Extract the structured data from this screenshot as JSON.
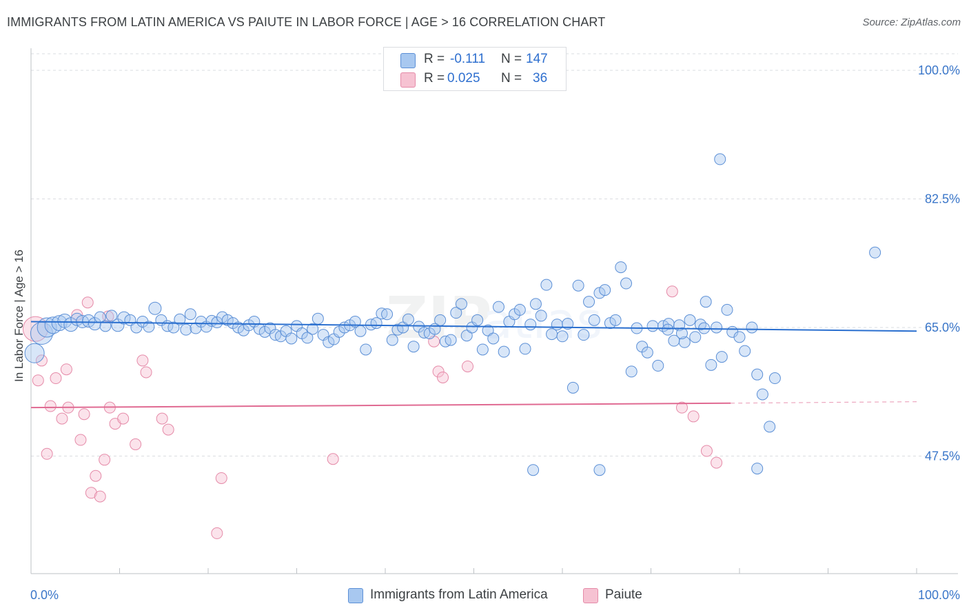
{
  "title": "IMMIGRANTS FROM LATIN AMERICA VS PAIUTE IN LABOR FORCE | AGE > 16 CORRELATION CHART",
  "source": "Source: ZipAtlas.com",
  "legend": {
    "rows": [
      {
        "r_label": "R =",
        "r_value": "-0.111",
        "n_label": "N =",
        "n_value": "147",
        "color": "#a8c8f0"
      },
      {
        "r_label": "R =",
        "r_value": "0.025",
        "n_label": "N =",
        "n_value": "36",
        "color": "#f6b6c8"
      }
    ]
  },
  "colors": {
    "blue_fill": "#a8c8f0",
    "blue_stroke": "#5b8fd6",
    "blue_line": "#2a6fcf",
    "pink_fill": "#f6c2d2",
    "pink_stroke": "#e58aa8",
    "pink_line": "#e06a92",
    "tick_text": "#3a76c9"
  },
  "chart_data": {
    "type": "scatter",
    "title": "IMMIGRANTS FROM LATIN AMERICA VS PAIUTE IN LABOR FORCE | AGE > 16 CORRELATION CHART",
    "xlabel": "",
    "ylabel": "In Labor Force | Age > 16",
    "xlim": [
      0,
      100
    ],
    "ylim": [
      31.5,
      103
    ],
    "x_tick_labels": [
      "0.0%",
      "100.0%"
    ],
    "y_ticks": [
      47.5,
      65.0,
      82.5,
      100.0
    ],
    "y_tick_labels": [
      "47.5%",
      "65.0%",
      "82.5%",
      "100.0%"
    ],
    "grid": "horizontal dashed",
    "legend_placement": "bottom",
    "series": [
      {
        "name": "Immigrants from Latin America",
        "color": "#a8c8f0",
        "trend": {
          "x": [
            0,
            100
          ],
          "y": [
            65.8,
            64.5
          ]
        },
        "points": [
          [
            0.4,
            61.5,
            14
          ],
          [
            1.2,
            64.2,
            16
          ],
          [
            1.8,
            65.0,
            14
          ],
          [
            2.5,
            65.3,
            12
          ],
          [
            3.2,
            65.6,
            11
          ],
          [
            3.8,
            65.9,
            10
          ],
          [
            4.5,
            65.4,
            10
          ],
          [
            5.2,
            66.1,
            9
          ],
          [
            5.8,
            65.8,
            9
          ],
          [
            6.5,
            65.9,
            9
          ],
          [
            7.2,
            65.5,
            9
          ],
          [
            7.8,
            66.4,
            8
          ],
          [
            8.4,
            65.2,
            8
          ],
          [
            9.1,
            66.6,
            8
          ],
          [
            9.8,
            65.3,
            9
          ],
          [
            10.5,
            66.3,
            9
          ],
          [
            11.2,
            66.0,
            8
          ],
          [
            11.9,
            65.0,
            8
          ],
          [
            12.6,
            65.8,
            8
          ],
          [
            13.3,
            65.1,
            8
          ],
          [
            14.0,
            67.6,
            9
          ],
          [
            14.7,
            66.0,
            8
          ],
          [
            15.4,
            65.2,
            8
          ],
          [
            16.1,
            65.0,
            8
          ],
          [
            16.8,
            66.1,
            8
          ],
          [
            17.5,
            64.7,
            8
          ],
          [
            18.0,
            66.8,
            8
          ],
          [
            18.6,
            64.9,
            8
          ],
          [
            19.2,
            65.8,
            8
          ],
          [
            19.8,
            65.1,
            8
          ],
          [
            20.4,
            65.9,
            8
          ],
          [
            21.0,
            65.7,
            8
          ],
          [
            21.6,
            66.4,
            8
          ],
          [
            22.2,
            66.0,
            8
          ],
          [
            22.8,
            65.6,
            8
          ],
          [
            23.4,
            65.0,
            8
          ],
          [
            24.0,
            64.6,
            8
          ],
          [
            24.6,
            65.3,
            8
          ],
          [
            25.2,
            65.8,
            8
          ],
          [
            25.8,
            64.8,
            8
          ],
          [
            26.4,
            64.4,
            8
          ],
          [
            27.0,
            64.9,
            8
          ],
          [
            27.6,
            64.0,
            8
          ],
          [
            28.2,
            63.8,
            8
          ],
          [
            28.8,
            64.5,
            8
          ],
          [
            29.4,
            63.5,
            8
          ],
          [
            30.0,
            65.2,
            8
          ],
          [
            30.6,
            64.2,
            8
          ],
          [
            31.2,
            63.6,
            8
          ],
          [
            31.8,
            64.8,
            8
          ],
          [
            32.4,
            66.2,
            8
          ],
          [
            33.0,
            64.0,
            8
          ],
          [
            33.6,
            63.0,
            8
          ],
          [
            34.2,
            63.4,
            8
          ],
          [
            34.8,
            64.4,
            8
          ],
          [
            35.4,
            65.0,
            8
          ],
          [
            36.0,
            65.3,
            8
          ],
          [
            36.6,
            65.8,
            8
          ],
          [
            37.2,
            64.5,
            8
          ],
          [
            37.8,
            62.0,
            8
          ],
          [
            38.4,
            65.4,
            8
          ],
          [
            39.0,
            65.6,
            8
          ],
          [
            39.6,
            66.9,
            8
          ],
          [
            40.2,
            66.8,
            8
          ],
          [
            40.8,
            63.3,
            8
          ],
          [
            41.4,
            64.7,
            8
          ],
          [
            42.0,
            65.0,
            8
          ],
          [
            42.6,
            66.1,
            8
          ],
          [
            43.2,
            62.4,
            8
          ],
          [
            43.8,
            65.1,
            8
          ],
          [
            44.4,
            64.3,
            8
          ],
          [
            45.0,
            64.2,
            8
          ],
          [
            45.6,
            64.8,
            8
          ],
          [
            46.2,
            66.0,
            8
          ],
          [
            46.8,
            63.1,
            8
          ],
          [
            47.4,
            63.3,
            8
          ],
          [
            48.0,
            67.0,
            8
          ],
          [
            48.6,
            68.2,
            8
          ],
          [
            49.2,
            63.9,
            8
          ],
          [
            49.8,
            65.0,
            8
          ],
          [
            50.4,
            66.0,
            8
          ],
          [
            51.0,
            62.0,
            8
          ],
          [
            51.6,
            64.6,
            8
          ],
          [
            52.2,
            63.5,
            8
          ],
          [
            52.8,
            67.8,
            8
          ],
          [
            53.4,
            61.7,
            8
          ],
          [
            54.0,
            65.8,
            8
          ],
          [
            54.6,
            66.8,
            8
          ],
          [
            55.2,
            67.4,
            8
          ],
          [
            55.8,
            62.1,
            8
          ],
          [
            56.4,
            65.4,
            8
          ],
          [
            57.0,
            68.2,
            8
          ],
          [
            57.6,
            66.6,
            8
          ],
          [
            58.2,
            70.8,
            8
          ],
          [
            58.8,
            64.1,
            8
          ],
          [
            59.4,
            65.4,
            8
          ],
          [
            60.0,
            63.8,
            8
          ],
          [
            60.6,
            65.5,
            8
          ],
          [
            61.2,
            56.8,
            8
          ],
          [
            61.8,
            70.7,
            8
          ],
          [
            62.4,
            64.0,
            8
          ],
          [
            63.0,
            68.5,
            8
          ],
          [
            63.6,
            66.0,
            8
          ],
          [
            64.2,
            69.7,
            8
          ],
          [
            64.8,
            70.1,
            8
          ],
          [
            65.4,
            65.6,
            8
          ],
          [
            66.0,
            66.0,
            8
          ],
          [
            66.6,
            73.2,
            8
          ],
          [
            67.2,
            71.0,
            8
          ],
          [
            67.8,
            59.0,
            8
          ],
          [
            68.4,
            64.9,
            8
          ],
          [
            69.0,
            62.4,
            8
          ],
          [
            69.6,
            61.6,
            8
          ],
          [
            70.2,
            65.2,
            8
          ],
          [
            70.8,
            59.8,
            8
          ],
          [
            71.4,
            65.2,
            8
          ],
          [
            72.0,
            65.5,
            8
          ],
          [
            72.6,
            63.2,
            8
          ],
          [
            73.2,
            65.3,
            8
          ],
          [
            73.8,
            63.0,
            8
          ],
          [
            74.4,
            66.0,
            8
          ],
          [
            75.0,
            63.7,
            8
          ],
          [
            75.6,
            65.4,
            8
          ],
          [
            76.2,
            68.5,
            8
          ],
          [
            76.8,
            59.9,
            8
          ],
          [
            77.4,
            65.0,
            8
          ],
          [
            78.0,
            61.0,
            8
          ],
          [
            78.6,
            67.4,
            8
          ],
          [
            79.2,
            64.4,
            8
          ],
          [
            80.0,
            63.7,
            8
          ],
          [
            80.6,
            61.8,
            8
          ],
          [
            81.4,
            65.0,
            8
          ],
          [
            82.0,
            58.6,
            8
          ],
          [
            82.6,
            55.9,
            8
          ],
          [
            83.4,
            51.5,
            8
          ],
          [
            84.0,
            58.1,
            8
          ],
          [
            82.0,
            45.8,
            8
          ],
          [
            56.7,
            45.6,
            8
          ],
          [
            64.2,
            45.6,
            8
          ],
          [
            77.8,
            87.9,
            8
          ],
          [
            95.3,
            75.2,
            8
          ],
          [
            71.9,
            64.7,
            8
          ],
          [
            73.5,
            64.2,
            8
          ],
          [
            76.0,
            64.9,
            8
          ]
        ]
      },
      {
        "name": "Paiute",
        "color": "#f6b6c8",
        "trend": {
          "x": [
            0,
            79
          ],
          "y": [
            54.1,
            54.7
          ]
        },
        "trend_dashed": {
          "x": [
            79,
            100
          ],
          "y": [
            54.7,
            54.9
          ]
        },
        "points": [
          [
            0.5,
            64.8,
            18
          ],
          [
            0.8,
            57.8,
            8
          ],
          [
            1.2,
            60.5,
            8
          ],
          [
            1.8,
            47.8,
            8
          ],
          [
            2.2,
            54.3,
            8
          ],
          [
            2.8,
            58.1,
            8
          ],
          [
            3.5,
            52.6,
            8
          ],
          [
            4.2,
            54.1,
            8
          ],
          [
            4.0,
            59.3,
            8
          ],
          [
            5.2,
            66.7,
            8
          ],
          [
            5.6,
            49.7,
            8
          ],
          [
            6.0,
            53.2,
            8
          ],
          [
            6.4,
            68.4,
            8
          ],
          [
            6.8,
            42.5,
            8
          ],
          [
            7.3,
            44.8,
            8
          ],
          [
            7.8,
            42.0,
            8
          ],
          [
            8.3,
            47.0,
            8
          ],
          [
            8.7,
            66.5,
            8
          ],
          [
            8.9,
            54.1,
            8
          ],
          [
            9.5,
            51.9,
            8
          ],
          [
            10.4,
            52.6,
            8
          ],
          [
            11.8,
            49.1,
            8
          ],
          [
            12.6,
            60.5,
            8
          ],
          [
            13.0,
            58.9,
            8
          ],
          [
            14.8,
            52.6,
            8
          ],
          [
            15.5,
            51.1,
            8
          ],
          [
            21.5,
            44.5,
            8
          ],
          [
            21.0,
            37.0,
            8
          ],
          [
            34.1,
            47.1,
            8
          ],
          [
            45.5,
            63.1,
            8
          ],
          [
            46.0,
            59.0,
            8
          ],
          [
            46.5,
            58.2,
            8
          ],
          [
            49.3,
            59.7,
            8
          ],
          [
            72.4,
            69.9,
            8
          ],
          [
            73.5,
            54.1,
            8
          ],
          [
            74.8,
            52.9,
            8
          ],
          [
            76.3,
            48.2,
            8
          ],
          [
            77.4,
            46.6,
            8
          ]
        ]
      }
    ]
  },
  "bottom_legend": [
    {
      "label": "Immigrants from Latin America",
      "color": "#a8c8f0"
    },
    {
      "label": "Paiute",
      "color": "#f6c2d2"
    }
  ]
}
